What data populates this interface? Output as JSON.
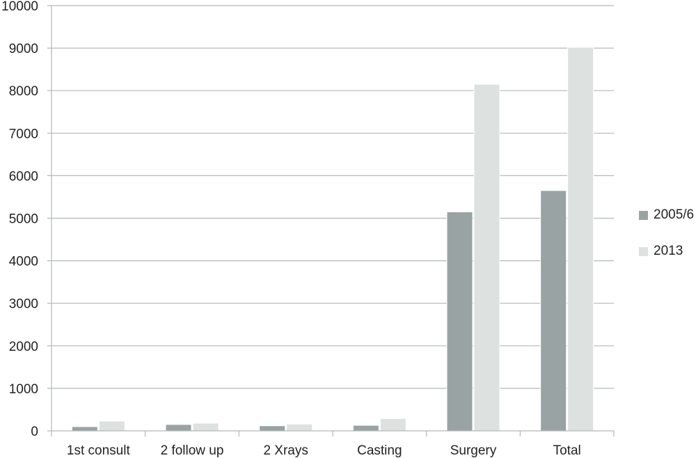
{
  "chart_data": {
    "type": "bar",
    "categories": [
      "1st consult",
      "2 follow up",
      "2 Xrays",
      "Casting",
      "Surgery",
      "Total"
    ],
    "series": [
      {
        "name": "2005/6",
        "values": [
          100,
          150,
          120,
          130,
          5150,
          5650
        ],
        "color": "#9aa3a3"
      },
      {
        "name": "2013",
        "values": [
          230,
          180,
          160,
          290,
          8150,
          9020
        ],
        "color": "#dde2e1"
      }
    ],
    "yticks": [
      "0",
      "1000",
      "2000",
      "3000",
      "4000",
      "5000",
      "6000",
      "7000",
      "8000",
      "9000",
      "10000"
    ],
    "ylim": [
      0,
      10000
    ],
    "grid": true,
    "legend_position": "right"
  }
}
